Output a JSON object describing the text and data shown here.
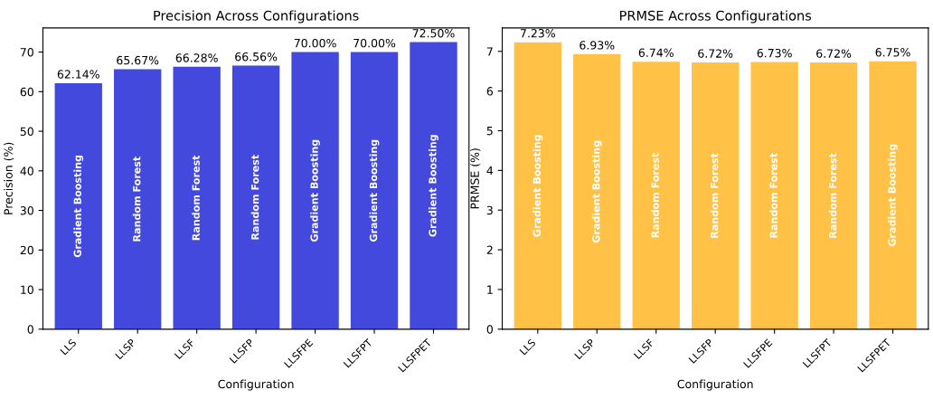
{
  "chart_data": [
    {
      "type": "bar",
      "title": "Precision Across Configurations",
      "xlabel": "Configuration",
      "ylabel": "Precision (%)",
      "categories": [
        "LLS",
        "LLSP",
        "LLSF",
        "LLSFP",
        "LLSFPE",
        "LLSFPT",
        "LLSFPET"
      ],
      "values": [
        62.14,
        65.67,
        66.28,
        66.56,
        70.0,
        70.0,
        72.5
      ],
      "color": "#4349dc",
      "value_labels": [
        "62.14%",
        "65.67%",
        "66.28%",
        "66.56%",
        "70.00%",
        "70.00%",
        "72.50%"
      ],
      "ylim": [
        0,
        76.1
      ],
      "yticks": [
        0,
        10,
        20,
        30,
        40,
        50,
        60,
        70
      ],
      "grid": false,
      "annotations": [
        "Gradient Boosting",
        "Random Forest",
        "Random Forest",
        "Random Forest",
        "Gradient Boosting",
        "Gradient Boosting",
        "Gradient Boosting"
      ]
    },
    {
      "type": "bar",
      "title": "PRMSE Across Configurations",
      "xlabel": "Configuration",
      "ylabel": "PRMSE (%)",
      "categories": [
        "LLS",
        "LLSP",
        "LLSF",
        "LLSFP",
        "LLSFPE",
        "LLSFPT",
        "LLSFPET"
      ],
      "values": [
        7.23,
        6.93,
        6.74,
        6.72,
        6.73,
        6.72,
        6.75
      ],
      "color": "#ffc247",
      "value_labels": [
        "7.23%",
        "6.93%",
        "6.74%",
        "6.72%",
        "6.73%",
        "6.72%",
        "6.75%"
      ],
      "ylim": [
        0,
        7.59
      ],
      "yticks": [
        0,
        1,
        2,
        3,
        4,
        5,
        6,
        7
      ],
      "grid": false,
      "annotations": [
        "Gradient Boosting",
        "Gradient Boosting",
        "Random Forest",
        "Random Forest",
        "Random Forest",
        "Random Forest",
        "Gradient Boosting"
      ]
    }
  ]
}
